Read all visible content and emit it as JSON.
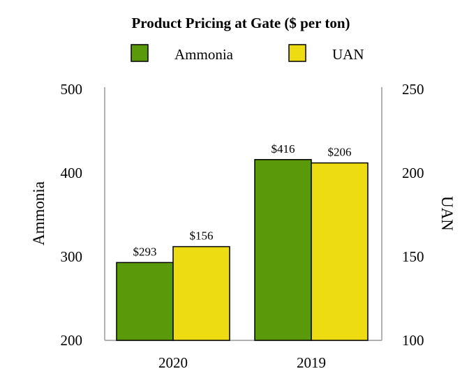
{
  "chart_data": {
    "type": "bar",
    "title": "Product Pricing at Gate ($ per ton)",
    "categories": [
      "2020",
      "2019"
    ],
    "series": [
      {
        "name": "Ammonia",
        "axis": "left",
        "color": "#5a9a0a",
        "values": [
          293,
          416
        ],
        "labels": [
          "$293",
          "$416"
        ]
      },
      {
        "name": "UAN",
        "axis": "right",
        "color": "#eddc12",
        "values": [
          156,
          206
        ],
        "labels": [
          "$156",
          "$206"
        ]
      }
    ],
    "y_left": {
      "label": "Ammonia",
      "ylim": [
        200,
        500
      ],
      "ticks": [
        "500",
        "400",
        "300",
        "200"
      ],
      "tick_values": [
        500,
        400,
        300,
        200
      ]
    },
    "y_right": {
      "label": "UAN",
      "ylim": [
        100,
        250
      ],
      "ticks": [
        "250",
        "200",
        "150",
        "100"
      ],
      "tick_values": [
        250,
        200,
        150,
        100
      ]
    },
    "legend": "top-center",
    "grid": false
  }
}
